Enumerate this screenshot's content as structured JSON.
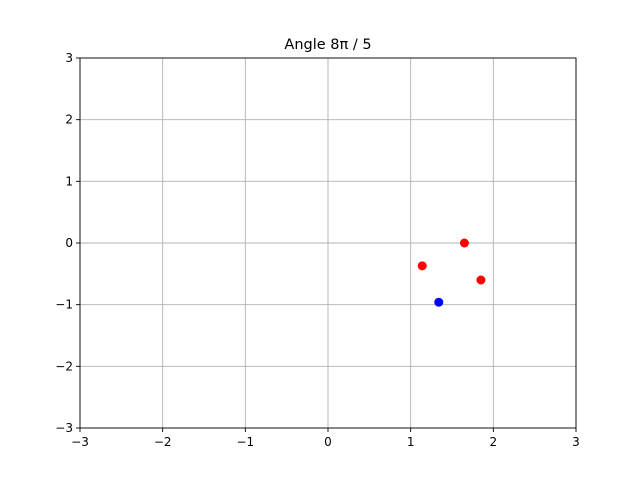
{
  "chart_data": {
    "type": "scatter",
    "title": "Angle 8π / 5",
    "xlabel": "",
    "ylabel": "",
    "xlim": [
      -3,
      3
    ],
    "ylim": [
      -3,
      3
    ],
    "x_ticks": [
      -3,
      -2,
      -1,
      0,
      1,
      2,
      3
    ],
    "y_ticks": [
      -3,
      -2,
      -1,
      0,
      1,
      2,
      3
    ],
    "x_tick_labels": [
      "−3",
      "−2",
      "−1",
      "0",
      "1",
      "2",
      "3"
    ],
    "y_tick_labels": [
      "−3",
      "−2",
      "−1",
      "0",
      "1",
      "2",
      "3"
    ],
    "grid": true,
    "series": [
      {
        "color": "#ff0000",
        "points": [
          {
            "x": 1.65,
            "y": 0.0
          },
          {
            "x": 1.14,
            "y": -0.37
          },
          {
            "x": 1.85,
            "y": -0.6
          }
        ]
      },
      {
        "color": "#0000ff",
        "points": [
          {
            "x": 1.34,
            "y": -0.96
          }
        ]
      }
    ]
  }
}
